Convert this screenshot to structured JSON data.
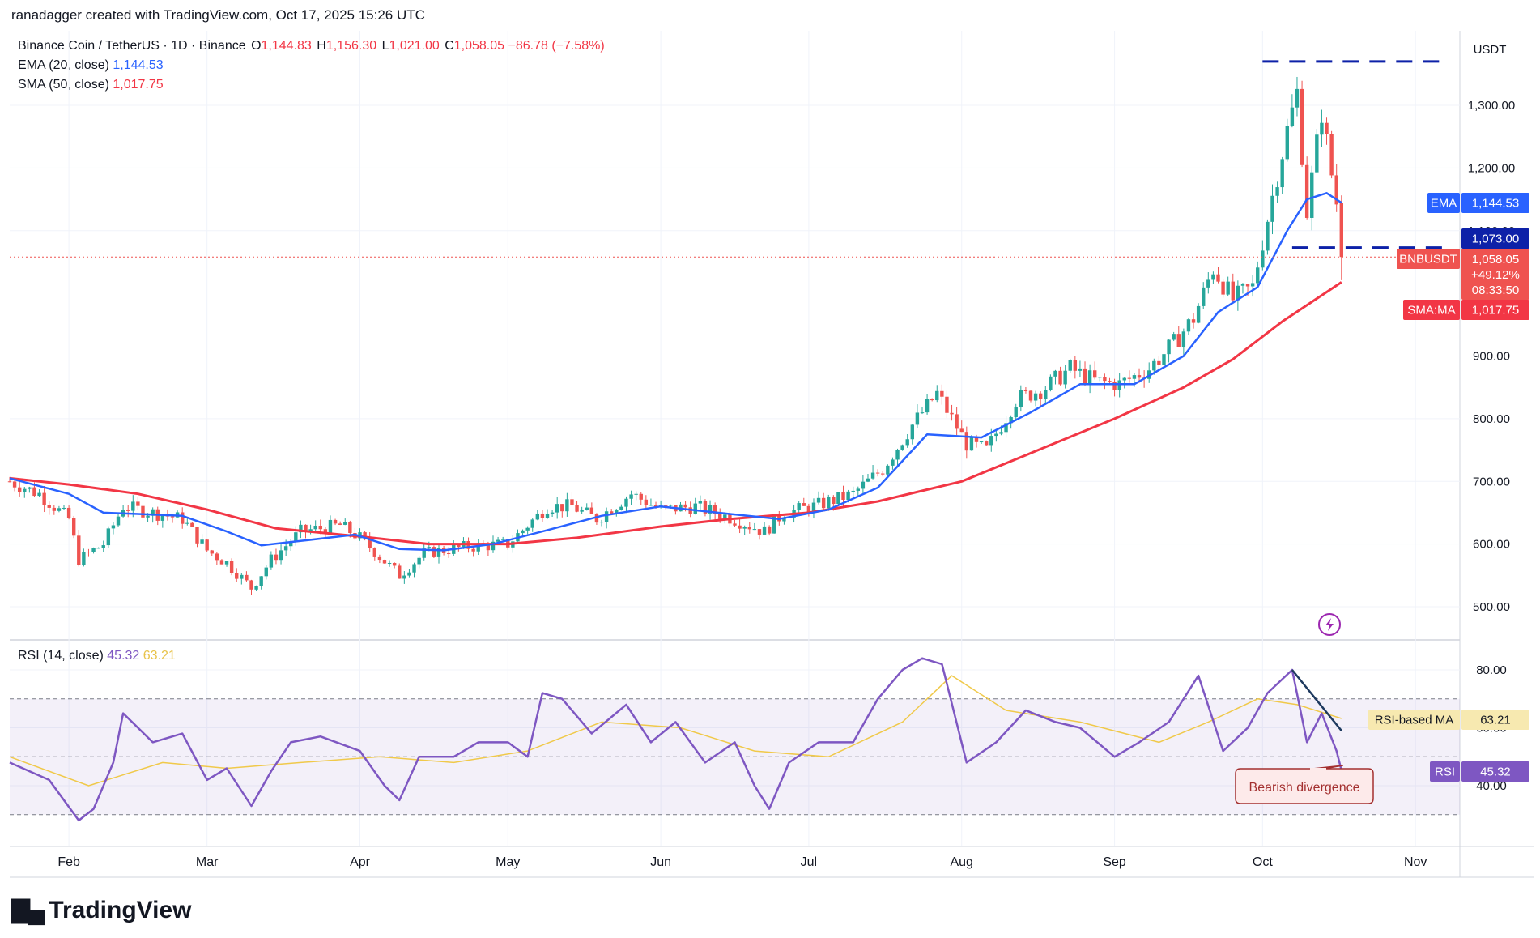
{
  "header": {
    "credit": "ranadagger created with TradingView.com, Oct 17, 2025 15:26 UTC"
  },
  "legend": {
    "symbol": "Binance Coin / TetherUS · 1D · Binance",
    "o_label": "O",
    "o": "1,144.83",
    "h_label": "H",
    "h": "1,156.30",
    "l_label": "L",
    "l": "1,021.00",
    "c_label": "C",
    "c": "1,058.05",
    "change": "−86.78 (−7.58%)",
    "ema_label": "EMA (20, close)",
    "ema_value": "1,144.53",
    "sma_label": "SMA (50, close)",
    "sma_value": "1,017.75",
    "rsi_label": "RSI (14, close)",
    "rsi_value": "45.32",
    "rsi_ma_value": "63.21"
  },
  "colors": {
    "up": "#26a69a",
    "down": "#ef5350",
    "ema": "#2962ff",
    "sma": "#f23645",
    "rsi": "#7e57c2",
    "rsi_ma": "#f0c94a",
    "axis_text": "#131722",
    "grid": "#f0f3fa"
  },
  "price_scale": {
    "unit": "USDT",
    "ticks": [
      "1,300.00",
      "1,200.00",
      "1,100.00",
      "900.00",
      "800.00",
      "700.00",
      "600.00",
      "500.00"
    ]
  },
  "rsi_scale": {
    "ticks": [
      "80.00",
      "60.00",
      "40.00"
    ]
  },
  "time_labels": [
    "Feb",
    "Mar",
    "Apr",
    "May",
    "Jun",
    "Jul",
    "Aug",
    "Sep",
    "Oct",
    "Nov"
  ],
  "price_tags": {
    "ema_tag": "EMA",
    "ema_value": "1,144.53",
    "level": "1,073.00",
    "symbol_tag": "BNBUSDT",
    "last_price": "1,058.05",
    "last_change": "+49.12%",
    "countdown": "08:33:50",
    "sma_tag": "SMA:MA",
    "sma_value": "1,017.75",
    "rsi_ma_tag": "RSI-based MA",
    "rsi_ma_value": "63.21",
    "rsi_tag": "RSI",
    "rsi_value": "45.32"
  },
  "annotation": {
    "text": "Bearish divergence"
  },
  "branding": {
    "name": "TradingView"
  },
  "chart_data": [
    {
      "type": "candlestick",
      "title": "Binance Coin / TetherUS · 1D · Binance",
      "x_range": [
        "2025-01-20",
        "2025-11-10"
      ],
      "ylim": [
        450,
        1400
      ],
      "last": {
        "date": "2025-10-17",
        "open": 1144.83,
        "high": 1156.3,
        "low": 1021.0,
        "close": 1058.05
      },
      "close_path": [
        [
          "2025-01-20",
          700
        ],
        [
          "2025-01-26",
          680
        ],
        [
          "2025-02-01",
          640
        ],
        [
          "2025-02-03",
          575
        ],
        [
          "2025-02-08",
          600
        ],
        [
          "2025-02-12",
          660
        ],
        [
          "2025-02-18",
          650
        ],
        [
          "2025-02-24",
          640
        ],
        [
          "2025-03-01",
          590
        ],
        [
          "2025-03-05",
          570
        ],
        [
          "2025-03-10",
          530
        ],
        [
          "2025-03-14",
          575
        ],
        [
          "2025-03-20",
          620
        ],
        [
          "2025-03-28",
          630
        ],
        [
          "2025-04-01",
          610
        ],
        [
          "2025-04-05",
          580
        ],
        [
          "2025-04-09",
          550
        ],
        [
          "2025-04-14",
          585
        ],
        [
          "2025-04-22",
          595
        ],
        [
          "2025-05-01",
          600
        ],
        [
          "2025-05-09",
          660
        ],
        [
          "2025-05-14",
          660
        ],
        [
          "2025-05-19",
          640
        ],
        [
          "2025-05-26",
          680
        ],
        [
          "2025-06-01",
          655
        ],
        [
          "2025-06-08",
          660
        ],
        [
          "2025-06-14",
          645
        ],
        [
          "2025-06-22",
          620
        ],
        [
          "2025-06-26",
          650
        ],
        [
          "2025-07-02",
          660
        ],
        [
          "2025-07-10",
          680
        ],
        [
          "2025-07-16",
          720
        ],
        [
          "2025-07-22",
          790
        ],
        [
          "2025-07-27",
          840
        ],
        [
          "2025-08-02",
          760
        ],
        [
          "2025-08-06",
          750
        ],
        [
          "2025-08-12",
          830
        ],
        [
          "2025-08-18",
          850
        ],
        [
          "2025-08-23",
          880
        ],
        [
          "2025-08-28",
          860
        ],
        [
          "2025-09-02",
          855
        ],
        [
          "2025-09-08",
          880
        ],
        [
          "2025-09-13",
          920
        ],
        [
          "2025-09-17",
          960
        ],
        [
          "2025-09-21",
          1040
        ],
        [
          "2025-09-25",
          990
        ],
        [
          "2025-09-29",
          1010
        ],
        [
          "2025-10-02",
          1120
        ],
        [
          "2025-10-06",
          1260
        ],
        [
          "2025-10-08",
          1320
        ],
        [
          "2025-10-10",
          1130
        ],
        [
          "2025-10-13",
          1290
        ],
        [
          "2025-10-15",
          1190
        ],
        [
          "2025-10-16",
          1144.83
        ],
        [
          "2025-10-17",
          1058.05
        ]
      ],
      "series": [
        {
          "name": "EMA (20, close)",
          "last": 1144.53,
          "values": [
            [
              "2025-01-20",
              705
            ],
            [
              "2025-02-01",
              680
            ],
            [
              "2025-02-08",
              650
            ],
            [
              "2025-02-15",
              648
            ],
            [
              "2025-02-24",
              645
            ],
            [
              "2025-03-05",
              620
            ],
            [
              "2025-03-12",
              598
            ],
            [
              "2025-03-20",
              605
            ],
            [
              "2025-03-31",
              615
            ],
            [
              "2025-04-09",
              592
            ],
            [
              "2025-04-18",
              590
            ],
            [
              "2025-04-28",
              600
            ],
            [
              "2025-05-08",
              620
            ],
            [
              "2025-05-20",
              645
            ],
            [
              "2025-06-01",
              660
            ],
            [
              "2025-06-15",
              648
            ],
            [
              "2025-06-25",
              640
            ],
            [
              "2025-07-05",
              655
            ],
            [
              "2025-07-15",
              690
            ],
            [
              "2025-07-25",
              775
            ],
            [
              "2025-08-05",
              770
            ],
            [
              "2025-08-15",
              810
            ],
            [
              "2025-08-25",
              855
            ],
            [
              "2025-09-05",
              855
            ],
            [
              "2025-09-15",
              900
            ],
            [
              "2025-09-22",
              970
            ],
            [
              "2025-09-30",
              1010
            ],
            [
              "2025-10-06",
              1100
            ],
            [
              "2025-10-10",
              1150
            ],
            [
              "2025-10-14",
              1160
            ],
            [
              "2025-10-17",
              1144.53
            ]
          ]
        },
        {
          "name": "SMA (50, close)",
          "last": 1017.75,
          "values": [
            [
              "2025-01-20",
              705
            ],
            [
              "2025-02-01",
              695
            ],
            [
              "2025-02-15",
              680
            ],
            [
              "2025-03-01",
              655
            ],
            [
              "2025-03-15",
              625
            ],
            [
              "2025-04-01",
              612
            ],
            [
              "2025-04-15",
              600
            ],
            [
              "2025-05-01",
              600
            ],
            [
              "2025-05-15",
              610
            ],
            [
              "2025-06-01",
              628
            ],
            [
              "2025-06-15",
              640
            ],
            [
              "2025-07-01",
              650
            ],
            [
              "2025-07-15",
              668
            ],
            [
              "2025-08-01",
              700
            ],
            [
              "2025-08-15",
              745
            ],
            [
              "2025-09-01",
              800
            ],
            [
              "2025-09-15",
              850
            ],
            [
              "2025-09-25",
              895
            ],
            [
              "2025-10-05",
              955
            ],
            [
              "2025-10-17",
              1017.75
            ]
          ]
        }
      ],
      "levels": [
        1370,
        1073
      ],
      "price_labels": [
        "1,300.00",
        "1,200.00",
        "1,100.00",
        "900.00",
        "800.00",
        "700.00",
        "600.00",
        "500.00"
      ]
    },
    {
      "type": "line",
      "title": "RSI (14, close)",
      "ylim": [
        25,
        90
      ],
      "bands": {
        "upper": 70,
        "middle": 50,
        "lower": 30
      },
      "series": [
        {
          "name": "RSI",
          "last": 45.32,
          "values": [
            [
              "2025-01-20",
              48
            ],
            [
              "2025-01-28",
              42
            ],
            [
              "2025-02-03",
              28
            ],
            [
              "2025-02-06",
              32
            ],
            [
              "2025-02-10",
              48
            ],
            [
              "2025-02-12",
              65
            ],
            [
              "2025-02-18",
              55
            ],
            [
              "2025-02-24",
              58
            ],
            [
              "2025-03-01",
              42
            ],
            [
              "2025-03-05",
              46
            ],
            [
              "2025-03-10",
              33
            ],
            [
              "2025-03-14",
              45
            ],
            [
              "2025-03-18",
              55
            ],
            [
              "2025-03-24",
              57
            ],
            [
              "2025-04-01",
              52
            ],
            [
              "2025-04-06",
              40
            ],
            [
              "2025-04-09",
              35
            ],
            [
              "2025-04-13",
              50
            ],
            [
              "2025-04-20",
              50
            ],
            [
              "2025-04-25",
              55
            ],
            [
              "2025-05-01",
              55
            ],
            [
              "2025-05-05",
              50
            ],
            [
              "2025-05-08",
              72
            ],
            [
              "2025-05-12",
              70
            ],
            [
              "2025-05-18",
              58
            ],
            [
              "2025-05-25",
              68
            ],
            [
              "2025-05-30",
              55
            ],
            [
              "2025-06-04",
              62
            ],
            [
              "2025-06-10",
              48
            ],
            [
              "2025-06-16",
              55
            ],
            [
              "2025-06-20",
              40
            ],
            [
              "2025-06-23",
              32
            ],
            [
              "2025-06-27",
              48
            ],
            [
              "2025-07-03",
              55
            ],
            [
              "2025-07-10",
              55
            ],
            [
              "2025-07-15",
              70
            ],
            [
              "2025-07-20",
              80
            ],
            [
              "2025-07-24",
              84
            ],
            [
              "2025-07-28",
              82
            ],
            [
              "2025-08-02",
              48
            ],
            [
              "2025-08-08",
              55
            ],
            [
              "2025-08-14",
              66
            ],
            [
              "2025-08-20",
              62
            ],
            [
              "2025-08-25",
              60
            ],
            [
              "2025-09-01",
              50
            ],
            [
              "2025-09-06",
              55
            ],
            [
              "2025-09-12",
              62
            ],
            [
              "2025-09-18",
              78
            ],
            [
              "2025-09-23",
              52
            ],
            [
              "2025-09-28",
              60
            ],
            [
              "2025-10-02",
              72
            ],
            [
              "2025-10-07",
              80
            ],
            [
              "2025-10-10",
              55
            ],
            [
              "2025-10-13",
              65
            ],
            [
              "2025-10-16",
              52
            ],
            [
              "2025-10-17",
              45.32
            ]
          ]
        },
        {
          "name": "RSI-based MA",
          "last": 63.21,
          "values": [
            [
              "2025-01-20",
              50
            ],
            [
              "2025-02-05",
              40
            ],
            [
              "2025-02-20",
              48
            ],
            [
              "2025-03-05",
              46
            ],
            [
              "2025-03-20",
              48
            ],
            [
              "2025-04-05",
              50
            ],
            [
              "2025-04-20",
              48
            ],
            [
              "2025-05-05",
              52
            ],
            [
              "2025-05-20",
              62
            ],
            [
              "2025-06-05",
              60
            ],
            [
              "2025-06-20",
              52
            ],
            [
              "2025-07-05",
              50
            ],
            [
              "2025-07-20",
              62
            ],
            [
              "2025-07-30",
              78
            ],
            [
              "2025-08-10",
              66
            ],
            [
              "2025-08-25",
              62
            ],
            [
              "2025-09-10",
              55
            ],
            [
              "2025-09-20",
              62
            ],
            [
              "2025-09-30",
              70
            ],
            [
              "2025-10-08",
              68
            ],
            [
              "2025-10-17",
              63.21
            ]
          ]
        }
      ],
      "trendline": [
        [
          "2025-10-07",
          80
        ],
        [
          "2025-10-17",
          59
        ]
      ],
      "annotation": "Bearish divergence",
      "y_labels": [
        "80.00",
        "60.00",
        "40.00"
      ]
    }
  ]
}
